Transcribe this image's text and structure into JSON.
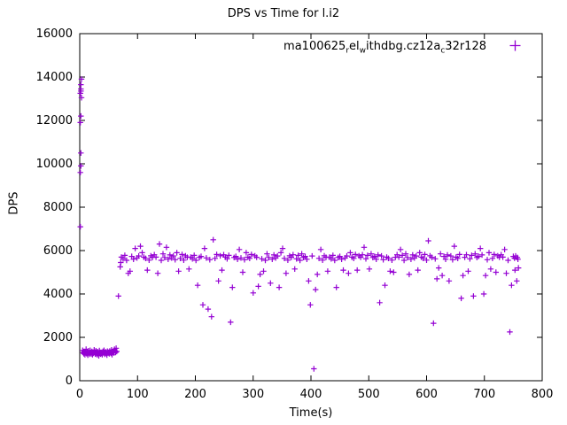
{
  "chart_data": {
    "type": "scatter",
    "title": "DPS vs Time for l.i2",
    "xlabel": "Time(s)",
    "ylabel": "DPS",
    "xlim": [
      0,
      800
    ],
    "ylim": [
      0,
      16000
    ],
    "xticks": [
      0,
      100,
      200,
      300,
      400,
      500,
      600,
      700,
      800
    ],
    "yticks": [
      0,
      2000,
      4000,
      6000,
      8000,
      10000,
      12000,
      14000,
      16000
    ],
    "grid": false,
    "legend_position": "top-right-inside",
    "marker": "plus",
    "color": "#9400d3",
    "legend": {
      "label": "ma100625_rel_withdbg.cz12a_c32r128",
      "segments": [
        {
          "t": "ma100625"
        },
        {
          "s": "r"
        },
        {
          "t": "el"
        },
        {
          "s": "w"
        },
        {
          "t": "ithdbg.cz12a"
        },
        {
          "s": "c"
        },
        {
          "t": "32r128"
        }
      ]
    },
    "points": [
      [
        1,
        7100
      ],
      [
        1,
        9600
      ],
      [
        2,
        9900
      ],
      [
        2,
        10500
      ],
      [
        1,
        11900
      ],
      [
        2,
        12200
      ],
      [
        1,
        13250
      ],
      [
        2,
        13450
      ],
      [
        2,
        13650
      ],
      [
        3,
        13900
      ],
      [
        2,
        13350
      ],
      [
        3,
        13050
      ],
      [
        5,
        1400
      ],
      [
        6,
        1300
      ],
      [
        7,
        1250
      ],
      [
        8,
        1350
      ],
      [
        9,
        1200
      ],
      [
        10,
        1300
      ],
      [
        11,
        1450
      ],
      [
        12,
        1250
      ],
      [
        13,
        1320
      ],
      [
        14,
        1180
      ],
      [
        15,
        1380
      ],
      [
        16,
        1280
      ],
      [
        17,
        1220
      ],
      [
        18,
        1400
      ],
      [
        19,
        1300
      ],
      [
        20,
        1240
      ],
      [
        21,
        1350
      ],
      [
        22,
        1200
      ],
      [
        23,
        1300
      ],
      [
        24,
        1260
      ],
      [
        25,
        1420
      ],
      [
        26,
        1310
      ],
      [
        27,
        1230
      ],
      [
        28,
        1380
      ],
      [
        29,
        1290
      ],
      [
        30,
        1200
      ],
      [
        31,
        1340
      ],
      [
        32,
        1270
      ],
      [
        33,
        1150
      ],
      [
        34,
        1390
      ],
      [
        35,
        1300
      ],
      [
        36,
        1230
      ],
      [
        37,
        1310
      ],
      [
        38,
        1260
      ],
      [
        39,
        1200
      ],
      [
        40,
        1350
      ],
      [
        41,
        1280
      ],
      [
        42,
        1400
      ],
      [
        43,
        1220
      ],
      [
        44,
        1300
      ],
      [
        45,
        1330
      ],
      [
        46,
        1250
      ],
      [
        47,
        1180
      ],
      [
        48,
        1360
      ],
      [
        49,
        1290
      ],
      [
        50,
        1310
      ],
      [
        51,
        1240
      ],
      [
        52,
        1370
      ],
      [
        53,
        1300
      ],
      [
        54,
        1260
      ],
      [
        55,
        1420
      ],
      [
        56,
        1200
      ],
      [
        57,
        1350
      ],
      [
        58,
        1300
      ],
      [
        59,
        1280
      ],
      [
        60,
        1450
      ],
      [
        61,
        1380
      ],
      [
        62,
        1300
      ],
      [
        63,
        1500
      ],
      [
        64,
        1350
      ],
      [
        67,
        3900
      ],
      [
        70,
        5250
      ],
      [
        71,
        5450
      ],
      [
        72,
        5700
      ],
      [
        75,
        5620
      ],
      [
        78,
        5780
      ],
      [
        81,
        5550
      ],
      [
        84,
        4950
      ],
      [
        87,
        5050
      ],
      [
        90,
        5730
      ],
      [
        93,
        5600
      ],
      [
        96,
        6100
      ],
      [
        99,
        5660
      ],
      [
        102,
        5750
      ],
      [
        105,
        6200
      ],
      [
        108,
        5900
      ],
      [
        111,
        5700
      ],
      [
        114,
        5640
      ],
      [
        117,
        5100
      ],
      [
        120,
        5560
      ],
      [
        123,
        5760
      ],
      [
        126,
        5690
      ],
      [
        129,
        5810
      ],
      [
        132,
        5700
      ],
      [
        135,
        4950
      ],
      [
        138,
        6300
      ],
      [
        141,
        5550
      ],
      [
        144,
        5850
      ],
      [
        147,
        5680
      ],
      [
        150,
        6150
      ],
      [
        153,
        5600
      ],
      [
        156,
        5800
      ],
      [
        159,
        5660
      ],
      [
        162,
        5750
      ],
      [
        165,
        5580
      ],
      [
        168,
        5900
      ],
      [
        171,
        5050
      ],
      [
        174,
        5640
      ],
      [
        177,
        5820
      ],
      [
        180,
        5560
      ],
      [
        183,
        5760
      ],
      [
        186,
        5690
      ],
      [
        189,
        5150
      ],
      [
        192,
        5700
      ],
      [
        195,
        5620
      ],
      [
        198,
        5780
      ],
      [
        201,
        5550
      ],
      [
        204,
        4400
      ],
      [
        207,
        5680
      ],
      [
        210,
        5730
      ],
      [
        213,
        3500
      ],
      [
        216,
        6100
      ],
      [
        219,
        5660
      ],
      [
        222,
        3300
      ],
      [
        225,
        5580
      ],
      [
        228,
        2950
      ],
      [
        231,
        6500
      ],
      [
        234,
        5640
      ],
      [
        237,
        5820
      ],
      [
        240,
        4600
      ],
      [
        243,
        5760
      ],
      [
        246,
        5100
      ],
      [
        249,
        5810
      ],
      [
        252,
        5700
      ],
      [
        255,
        5620
      ],
      [
        258,
        5780
      ],
      [
        261,
        2700
      ],
      [
        264,
        4300
      ],
      [
        267,
        5680
      ],
      [
        270,
        5730
      ],
      [
        273,
        5600
      ],
      [
        276,
        6050
      ],
      [
        279,
        5660
      ],
      [
        282,
        5000
      ],
      [
        285,
        5580
      ],
      [
        288,
        5900
      ],
      [
        291,
        5700
      ],
      [
        294,
        5640
      ],
      [
        297,
        5820
      ],
      [
        300,
        4050
      ],
      [
        303,
        5760
      ],
      [
        306,
        5690
      ],
      [
        309,
        4350
      ],
      [
        312,
        4900
      ],
      [
        315,
        5620
      ],
      [
        318,
        5050
      ],
      [
        321,
        5550
      ],
      [
        324,
        5850
      ],
      [
        327,
        5680
      ],
      [
        330,
        4500
      ],
      [
        333,
        5600
      ],
      [
        336,
        5800
      ],
      [
        339,
        5660
      ],
      [
        342,
        5750
      ],
      [
        345,
        4300
      ],
      [
        348,
        5900
      ],
      [
        351,
        6100
      ],
      [
        354,
        5640
      ],
      [
        357,
        4950
      ],
      [
        360,
        5560
      ],
      [
        363,
        5760
      ],
      [
        366,
        5690
      ],
      [
        369,
        5810
      ],
      [
        372,
        5150
      ],
      [
        375,
        5620
      ],
      [
        378,
        5780
      ],
      [
        381,
        5550
      ],
      [
        384,
        5850
      ],
      [
        387,
        5680
      ],
      [
        390,
        5730
      ],
      [
        393,
        5600
      ],
      [
        396,
        4600
      ],
      [
        399,
        3500
      ],
      [
        402,
        5750
      ],
      [
        405,
        550
      ],
      [
        408,
        4200
      ],
      [
        411,
        4900
      ],
      [
        414,
        5640
      ],
      [
        417,
        6050
      ],
      [
        420,
        5560
      ],
      [
        423,
        5760
      ],
      [
        426,
        5690
      ],
      [
        429,
        5050
      ],
      [
        432,
        5700
      ],
      [
        435,
        5620
      ],
      [
        438,
        5780
      ],
      [
        441,
        5550
      ],
      [
        444,
        4300
      ],
      [
        447,
        5680
      ],
      [
        450,
        5730
      ],
      [
        453,
        5600
      ],
      [
        456,
        5100
      ],
      [
        459,
        5660
      ],
      [
        462,
        5750
      ],
      [
        465,
        4950
      ],
      [
        468,
        5900
      ],
      [
        471,
        5700
      ],
      [
        474,
        5640
      ],
      [
        477,
        5820
      ],
      [
        480,
        5100
      ],
      [
        483,
        5760
      ],
      [
        486,
        5690
      ],
      [
        489,
        5810
      ],
      [
        492,
        6150
      ],
      [
        495,
        5620
      ],
      [
        498,
        5780
      ],
      [
        501,
        5150
      ],
      [
        504,
        5850
      ],
      [
        507,
        5680
      ],
      [
        510,
        5730
      ],
      [
        513,
        5600
      ],
      [
        516,
        5800
      ],
      [
        519,
        3600
      ],
      [
        522,
        5750
      ],
      [
        525,
        5580
      ],
      [
        528,
        4400
      ],
      [
        531,
        5700
      ],
      [
        534,
        5640
      ],
      [
        537,
        5050
      ],
      [
        540,
        5560
      ],
      [
        543,
        5000
      ],
      [
        546,
        5690
      ],
      [
        549,
        5810
      ],
      [
        552,
        5700
      ],
      [
        555,
        6050
      ],
      [
        558,
        5780
      ],
      [
        561,
        5550
      ],
      [
        564,
        5850
      ],
      [
        567,
        5680
      ],
      [
        570,
        4900
      ],
      [
        573,
        5600
      ],
      [
        576,
        5800
      ],
      [
        579,
        5660
      ],
      [
        582,
        5750
      ],
      [
        585,
        5100
      ],
      [
        588,
        5900
      ],
      [
        591,
        5700
      ],
      [
        594,
        5640
      ],
      [
        597,
        5820
      ],
      [
        600,
        5560
      ],
      [
        603,
        6450
      ],
      [
        606,
        5760
      ],
      [
        609,
        5690
      ],
      [
        612,
        2650
      ],
      [
        615,
        5620
      ],
      [
        618,
        4700
      ],
      [
        621,
        5200
      ],
      [
        624,
        5850
      ],
      [
        627,
        4850
      ],
      [
        630,
        5730
      ],
      [
        633,
        5600
      ],
      [
        636,
        5800
      ],
      [
        639,
        4600
      ],
      [
        642,
        5750
      ],
      [
        645,
        5580
      ],
      [
        648,
        6200
      ],
      [
        651,
        5700
      ],
      [
        654,
        5640
      ],
      [
        657,
        5820
      ],
      [
        660,
        3800
      ],
      [
        663,
        4850
      ],
      [
        666,
        5690
      ],
      [
        669,
        5810
      ],
      [
        672,
        5050
      ],
      [
        675,
        5620
      ],
      [
        678,
        5780
      ],
      [
        681,
        3900
      ],
      [
        684,
        5850
      ],
      [
        687,
        5680
      ],
      [
        690,
        5730
      ],
      [
        693,
        6100
      ],
      [
        696,
        5800
      ],
      [
        699,
        4000
      ],
      [
        702,
        4850
      ],
      [
        705,
        5580
      ],
      [
        708,
        5900
      ],
      [
        711,
        5150
      ],
      [
        714,
        5640
      ],
      [
        717,
        5820
      ],
      [
        720,
        5000
      ],
      [
        723,
        5760
      ],
      [
        726,
        5690
      ],
      [
        729,
        5810
      ],
      [
        732,
        5700
      ],
      [
        735,
        6050
      ],
      [
        738,
        4950
      ],
      [
        741,
        5550
      ],
      [
        744,
        2250
      ],
      [
        747,
        4400
      ],
      [
        750,
        5730
      ],
      [
        753,
        5100
      ],
      [
        756,
        4600
      ],
      [
        759,
        5200
      ],
      [
        752,
        5650
      ],
      [
        754,
        5750
      ],
      [
        757,
        5680
      ],
      [
        758,
        5600
      ]
    ]
  }
}
